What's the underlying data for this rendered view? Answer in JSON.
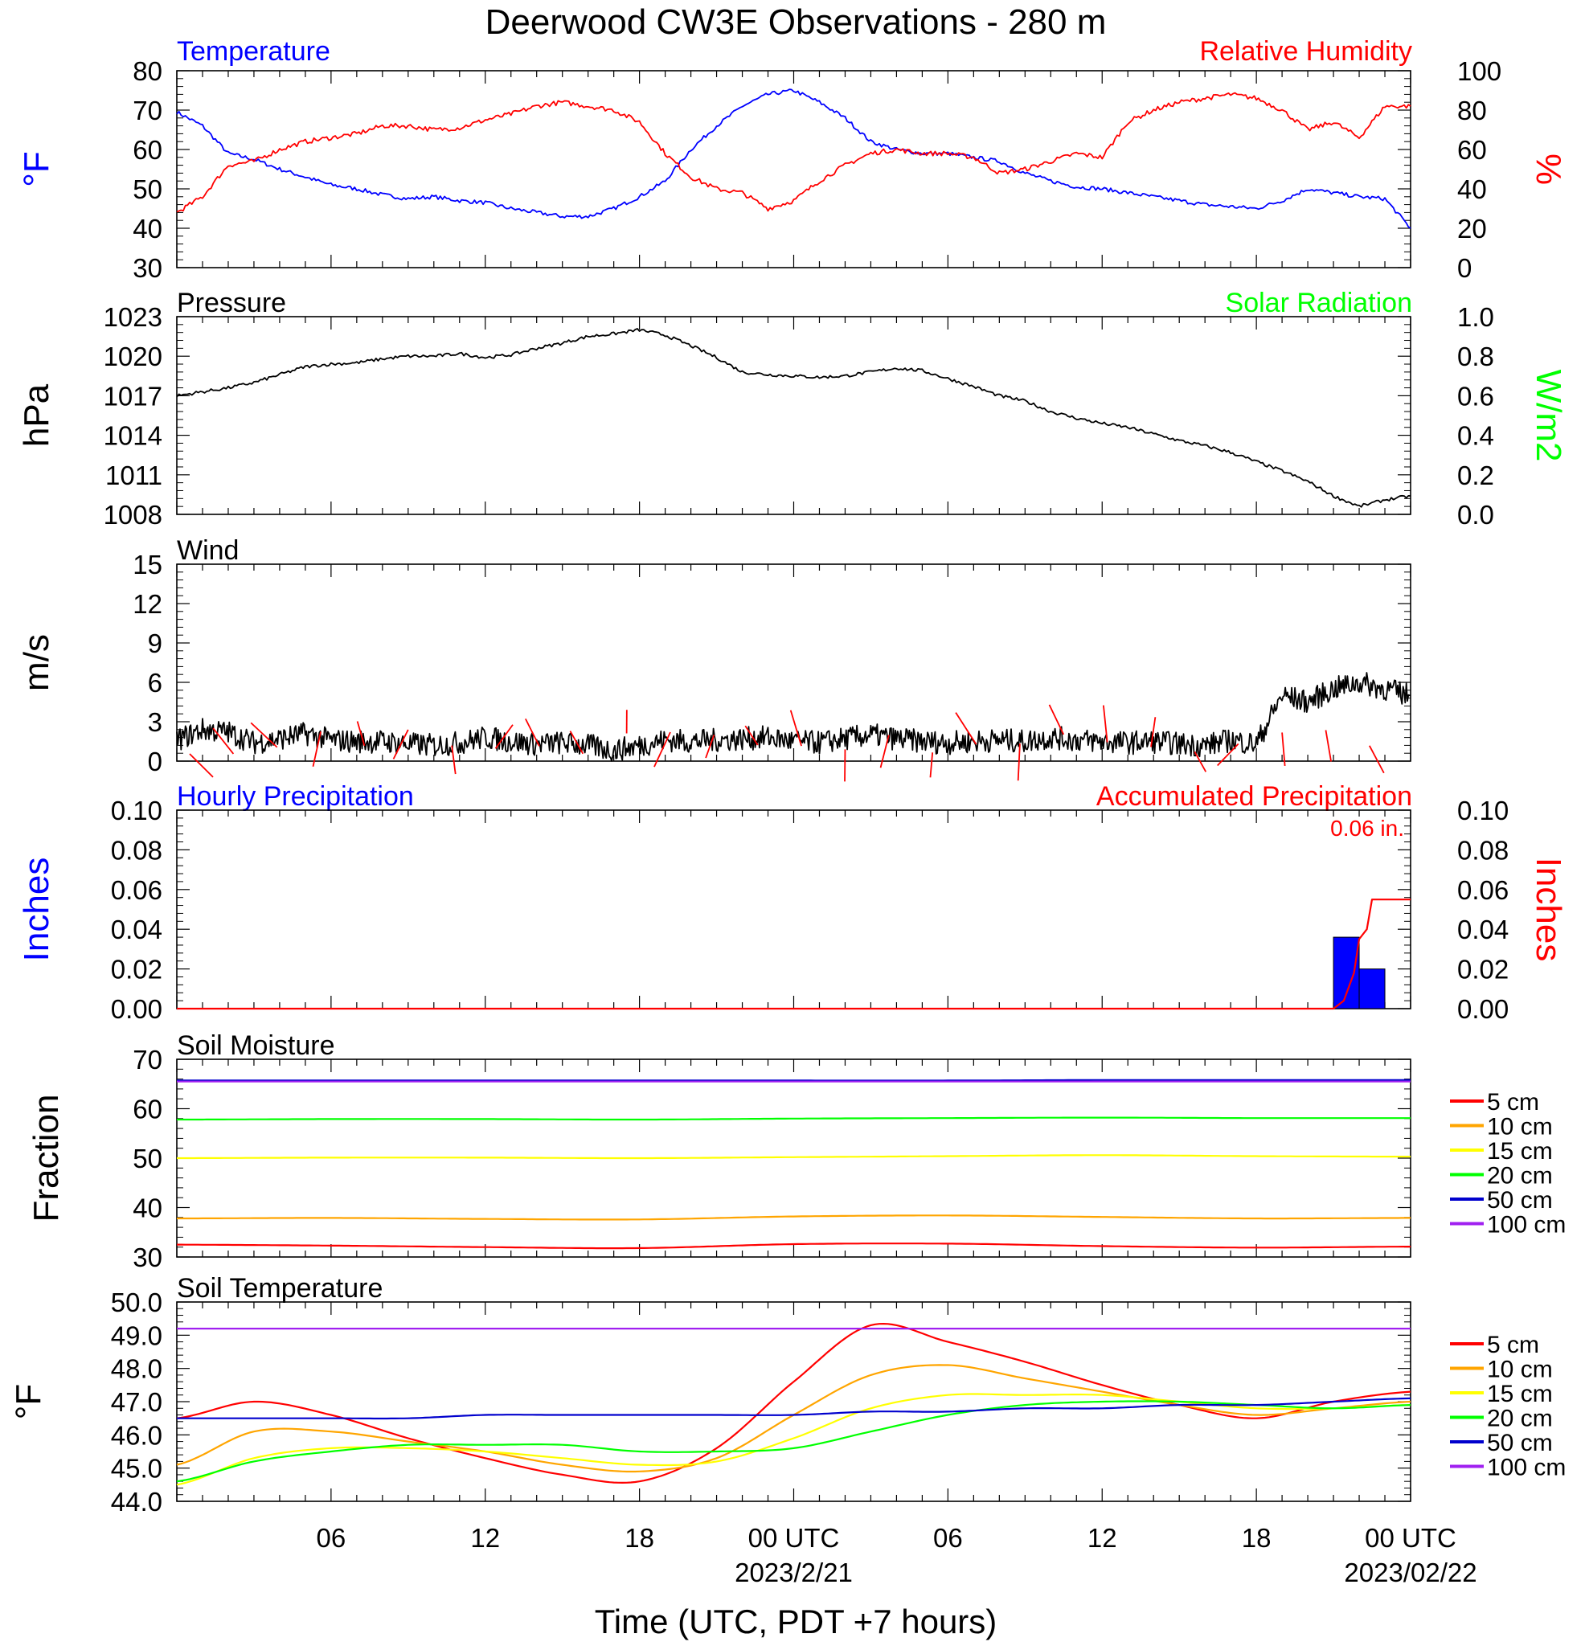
{
  "title": "Deerwood CW3E Observations - 280 m",
  "xaxis": {
    "label": "Time (UTC, PDT +7 hours)",
    "ticks": [
      "06",
      "12",
      "18",
      "00 UTC",
      "06",
      "12",
      "18",
      "00 UTC"
    ],
    "dates": [
      "2023/2/21",
      "2023/02/22"
    ]
  },
  "colors": {
    "blue": "#0000ff",
    "red": "#ff0000",
    "green": "#00ff00",
    "black": "#000000",
    "orange": "#ffa500",
    "yellow": "#ffff00",
    "navy": "#0000cd",
    "purple": "#a020f0"
  },
  "chart_data": [
    {
      "type": "line",
      "name": "temperature-humidity",
      "title_left": "Temperature",
      "title_right": "Relative Humidity",
      "ylabel_left": "°F",
      "ylabel_right": "%",
      "ylim_left": [
        30,
        80
      ],
      "ylim_right": [
        0,
        100
      ],
      "yticks_left": [
        "80",
        "70",
        "60",
        "50",
        "40",
        "30"
      ],
      "yticks_right": [
        "100",
        "80",
        "60",
        "40",
        "20",
        "0"
      ],
      "x_hours": [
        0,
        1,
        2,
        3,
        4,
        5,
        6,
        7,
        8,
        9,
        10,
        11,
        12,
        13,
        14,
        15,
        16,
        17,
        18,
        19,
        20,
        21,
        22,
        23,
        24,
        25,
        26,
        27,
        28,
        29,
        30,
        31,
        32,
        33,
        34,
        35,
        36,
        37,
        38,
        39,
        40,
        41,
        42,
        43,
        44,
        45,
        46,
        47,
        48
      ],
      "series": [
        {
          "axis": "left",
          "color": "#0000ff",
          "values": [
            69.5,
            66,
            59,
            57.5,
            55,
            53,
            51,
            50,
            48.5,
            47.5,
            48,
            47,
            46.5,
            45,
            44,
            43,
            43,
            45,
            48,
            52,
            60,
            66,
            71,
            74,
            75,
            72,
            68,
            62,
            60,
            59,
            59,
            58,
            57,
            54,
            52,
            50.5,
            50,
            49,
            48,
            47,
            46,
            45.5,
            45,
            47,
            50,
            49,
            48,
            47.5,
            40
          ]
        },
        {
          "axis": "right",
          "color": "#ff0000",
          "values": [
            28,
            36,
            52,
            54,
            60,
            64,
            66,
            68,
            72,
            72,
            70,
            71,
            75,
            78,
            82,
            84,
            82,
            80,
            74,
            58,
            46,
            40,
            38,
            30,
            34,
            44,
            52,
            58,
            60,
            58,
            58,
            56,
            48,
            50,
            54,
            58,
            56,
            74,
            80,
            84,
            86,
            88,
            86,
            80,
            70,
            74,
            66,
            82,
            82
          ]
        }
      ]
    },
    {
      "type": "line",
      "name": "pressure",
      "title_left": "Pressure",
      "title_right": "Solar Radiation",
      "ylabel_left": "hPa",
      "ylabel_right": "W/m2",
      "ylim_left": [
        1008,
        1023
      ],
      "ylim_right": [
        0,
        1
      ],
      "yticks_left": [
        "1023",
        "1020",
        "1017",
        "1014",
        "1011",
        "1008"
      ],
      "yticks_right": [
        "1.0",
        "0.8",
        "0.6",
        "0.4",
        "0.2",
        "0.0"
      ],
      "x_hours": [
        0,
        1,
        2,
        3,
        4,
        5,
        6,
        7,
        8,
        9,
        10,
        11,
        12,
        13,
        14,
        15,
        16,
        17,
        18,
        19,
        20,
        21,
        22,
        23,
        24,
        25,
        26,
        27,
        28,
        29,
        30,
        31,
        32,
        33,
        34,
        35,
        36,
        37,
        38,
        39,
        40,
        41,
        42,
        43,
        44,
        45,
        46,
        47,
        48
      ],
      "series": [
        {
          "axis": "left",
          "color": "#000000",
          "values": [
            1017.0,
            1017.3,
            1017.6,
            1018.0,
            1018.6,
            1019.2,
            1019.4,
            1019.5,
            1019.8,
            1020.0,
            1020.0,
            1020.2,
            1019.9,
            1020.1,
            1020.6,
            1021.0,
            1021.5,
            1021.7,
            1022.0,
            1021.6,
            1020.8,
            1019.9,
            1018.8,
            1018.6,
            1018.5,
            1018.4,
            1018.5,
            1018.8,
            1019.1,
            1018.9,
            1018.3,
            1017.7,
            1017.0,
            1016.6,
            1015.8,
            1015.3,
            1014.9,
            1014.6,
            1014.1,
            1013.6,
            1013.2,
            1012.7,
            1012.0,
            1011.3,
            1010.5,
            1009.4,
            1008.6,
            1009.1,
            1009.4
          ]
        }
      ]
    },
    {
      "type": "line",
      "name": "wind",
      "title_left": "Wind",
      "ylabel_left": "m/s",
      "ylim_left": [
        0,
        15
      ],
      "yticks_left": [
        "15",
        "12",
        "9",
        "6",
        "3",
        "0"
      ],
      "x_hours": [
        0,
        1,
        2,
        3,
        4,
        5,
        6,
        7,
        8,
        9,
        10,
        11,
        12,
        13,
        14,
        15,
        16,
        17,
        18,
        19,
        20,
        21,
        22,
        23,
        24,
        25,
        26,
        27,
        28,
        29,
        30,
        31,
        32,
        33,
        34,
        35,
        36,
        37,
        38,
        39,
        40,
        41,
        42,
        43,
        44,
        45,
        46,
        47,
        48
      ],
      "series": [
        {
          "axis": "left",
          "color": "#000000",
          "values": [
            1.6,
            2.4,
            2.2,
            1.4,
            1.7,
            2.1,
            1.6,
            1.5,
            1.5,
            1.3,
            1.2,
            1.4,
            1.8,
            1.5,
            1.3,
            1.4,
            1.2,
            0.8,
            1.2,
            1.6,
            1.5,
            1.6,
            1.7,
            1.8,
            1.5,
            1.4,
            1.7,
            2.0,
            1.7,
            1.5,
            1.4,
            1.5,
            1.6,
            1.5,
            1.8,
            1.6,
            1.5,
            1.4,
            1.5,
            1.3,
            1.2,
            1.6,
            1.3,
            5.0,
            4.5,
            5.5,
            6.0,
            5.5,
            5.0
          ]
        }
      ]
    },
    {
      "type": "bar",
      "name": "precipitation",
      "title_left": "Hourly Precipitation",
      "title_right": "Accumulated Precipitation",
      "total_label": "0.06 in.",
      "ylabel_left": "Inches",
      "ylabel_right": "Inches",
      "ylim_left": [
        0,
        0.1
      ],
      "ylim_right": [
        0,
        0.1
      ],
      "yticks_left": [
        "0.10",
        "0.08",
        "0.06",
        "0.04",
        "0.02",
        "0.00"
      ],
      "yticks_right": [
        "0.10",
        "0.08",
        "0.06",
        "0.04",
        "0.02",
        "0.00"
      ],
      "hourly_bars": [
        {
          "hour": 45,
          "value": 0.036
        },
        {
          "hour": 46,
          "value": 0.02
        }
      ],
      "accumulated": {
        "x_hours": [
          0,
          45,
          45.4,
          45.8,
          46.0,
          46.3,
          46.5,
          48
        ],
        "values": [
          0,
          0,
          0.004,
          0.018,
          0.035,
          0.04,
          0.055,
          0.055
        ]
      }
    },
    {
      "type": "line",
      "name": "soil-moisture",
      "title_left": "Soil Moisture",
      "ylabel_left": "Fraction",
      "ylim_left": [
        30,
        70
      ],
      "yticks_left": [
        "70",
        "60",
        "50",
        "40",
        "30"
      ],
      "x_hours": [
        0,
        6,
        12,
        18,
        24,
        30,
        36,
        42,
        48
      ],
      "series": [
        {
          "name": "5 cm",
          "color": "#ff0000",
          "values": [
            32.5,
            32.3,
            32.0,
            31.8,
            32.6,
            32.7,
            32.2,
            31.9,
            32.1
          ]
        },
        {
          "name": "10 cm",
          "color": "#ffa500",
          "values": [
            37.8,
            37.9,
            37.7,
            37.6,
            38.2,
            38.4,
            38.1,
            37.8,
            37.9
          ]
        },
        {
          "name": "15 cm",
          "color": "#ffff00",
          "values": [
            50.0,
            50.1,
            50.1,
            50.0,
            50.2,
            50.4,
            50.6,
            50.4,
            50.3
          ]
        },
        {
          "name": "20 cm",
          "color": "#00ff00",
          "values": [
            57.8,
            57.9,
            57.9,
            57.8,
            58.0,
            58.1,
            58.2,
            58.1,
            58.1
          ]
        },
        {
          "name": "50 cm",
          "color": "#0000cd",
          "values": [
            65.7,
            65.7,
            65.7,
            65.7,
            65.7,
            65.7,
            65.8,
            65.8,
            65.8
          ]
        },
        {
          "name": "100 cm",
          "color": "#a020f0",
          "values": [
            65.5,
            65.5,
            65.5,
            65.5,
            65.5,
            65.5,
            65.5,
            65.5,
            65.5
          ]
        }
      ]
    },
    {
      "type": "line",
      "name": "soil-temperature",
      "title_left": "Soil Temperature",
      "ylabel_left": "°F",
      "ylim_left": [
        44,
        50
      ],
      "yticks_left": [
        "50.0",
        "49.0",
        "48.0",
        "47.0",
        "46.0",
        "45.0",
        "44.0"
      ],
      "x_hours": [
        0,
        3,
        6,
        9,
        12,
        15,
        18,
        21,
        24,
        27,
        30,
        33,
        36,
        39,
        42,
        45,
        48
      ],
      "series": [
        {
          "name": "5 cm",
          "color": "#ff0000",
          "values": [
            46.5,
            47.0,
            46.6,
            45.9,
            45.3,
            44.8,
            44.6,
            45.6,
            47.6,
            49.3,
            48.8,
            48.2,
            47.5,
            46.9,
            46.5,
            47.0,
            47.3
          ]
        },
        {
          "name": "10 cm",
          "color": "#ffa500",
          "values": [
            45.1,
            46.1,
            46.1,
            45.8,
            45.5,
            45.1,
            44.9,
            45.3,
            46.6,
            47.8,
            48.1,
            47.7,
            47.3,
            46.9,
            46.6,
            46.8,
            47.0
          ]
        },
        {
          "name": "15 cm",
          "color": "#ffff00",
          "values": [
            44.5,
            45.3,
            45.6,
            45.6,
            45.5,
            45.3,
            45.1,
            45.2,
            45.9,
            46.8,
            47.2,
            47.2,
            47.2,
            47.0,
            46.8,
            46.8,
            46.9
          ]
        },
        {
          "name": "20 cm",
          "color": "#00ff00",
          "values": [
            44.6,
            45.2,
            45.5,
            45.7,
            45.7,
            45.7,
            45.5,
            45.5,
            45.6,
            46.1,
            46.6,
            46.9,
            47.0,
            47.0,
            46.9,
            46.8,
            46.9
          ]
        },
        {
          "name": "50 cm",
          "color": "#0000cd",
          "values": [
            46.5,
            46.5,
            46.5,
            46.5,
            46.6,
            46.6,
            46.6,
            46.6,
            46.6,
            46.7,
            46.7,
            46.8,
            46.8,
            46.9,
            46.9,
            47.0,
            47.1
          ]
        },
        {
          "name": "100 cm",
          "color": "#a020f0",
          "values": [
            49.2,
            49.2,
            49.2,
            49.2,
            49.2,
            49.2,
            49.2,
            49.2,
            49.2,
            49.2,
            49.2,
            49.2,
            49.2,
            49.2,
            49.2,
            49.2,
            49.2
          ]
        }
      ]
    }
  ]
}
